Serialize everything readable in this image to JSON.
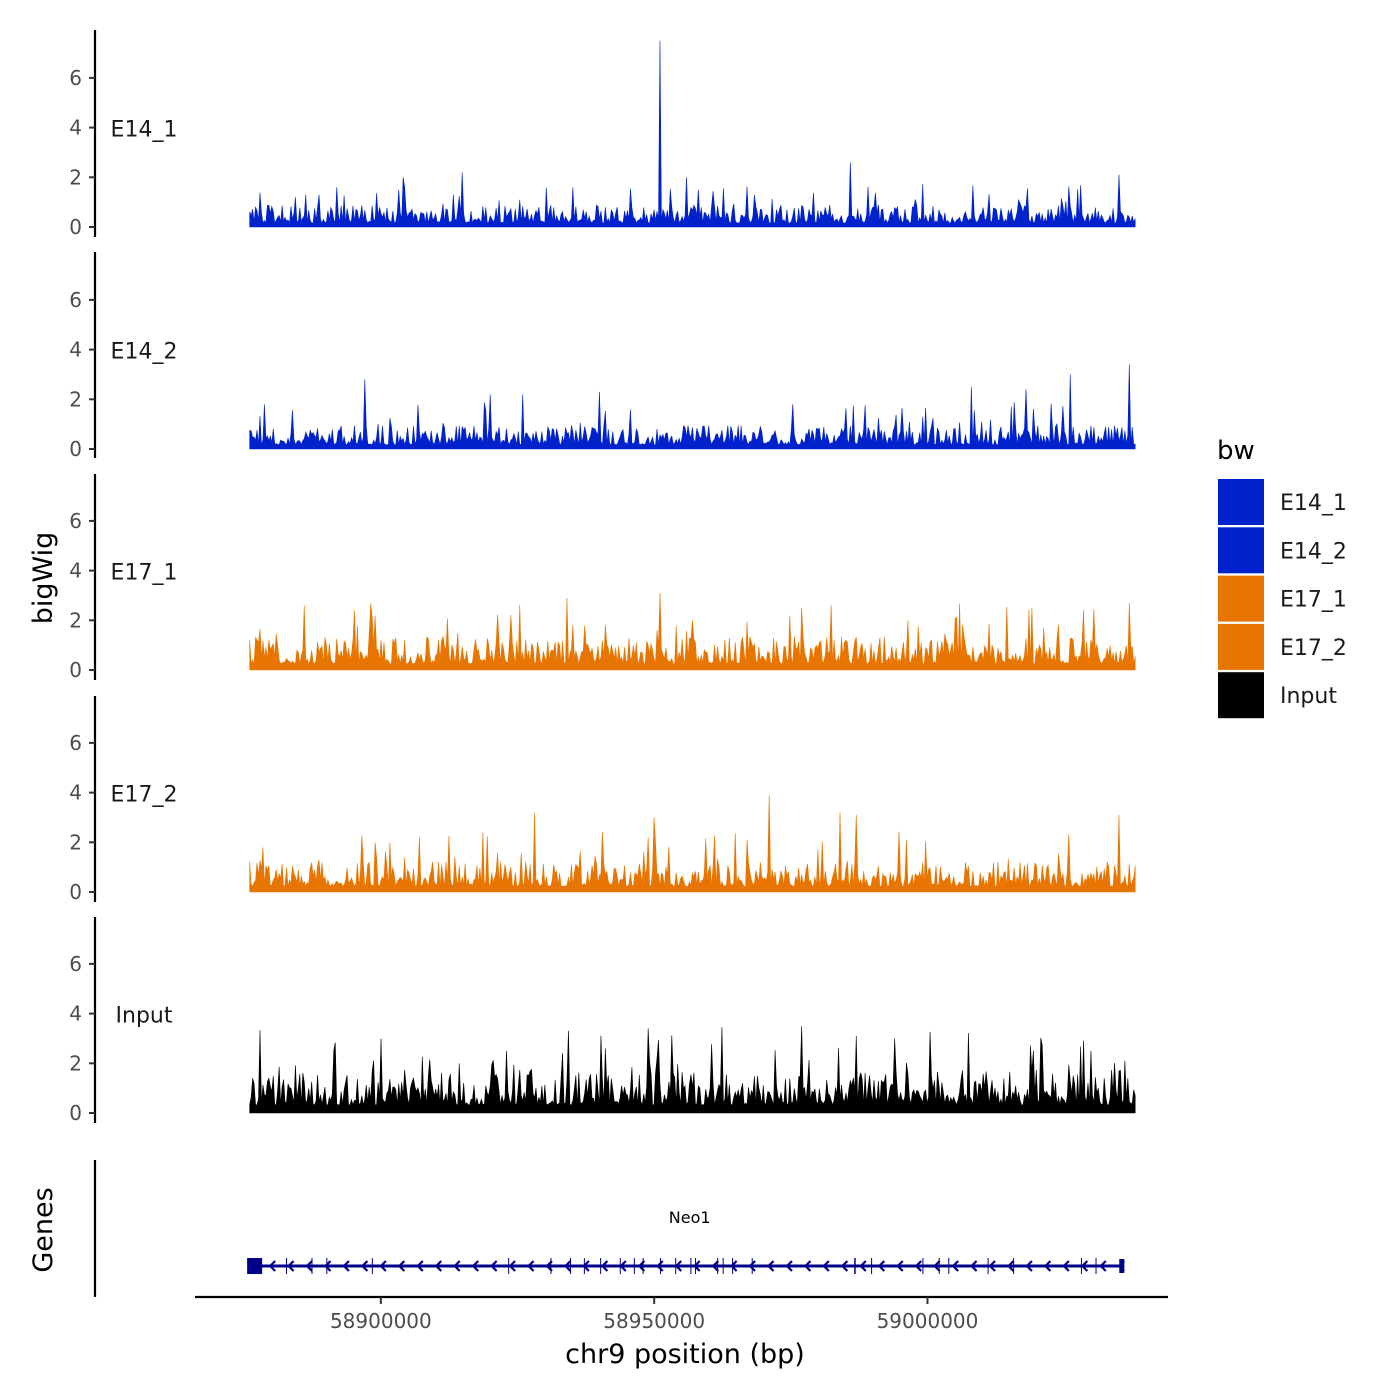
{
  "chart_data": {
    "type": "area",
    "title": "",
    "xlabel": "chr9 position (bp)",
    "ylabel": "bigWig",
    "genes_label": "Genes",
    "xlim": [
      58866000,
      59044000
    ],
    "region": [
      58876000,
      59038000
    ],
    "x_ticks": [
      58900000,
      58950000,
      59000000
    ],
    "x_tick_labels": [
      "58900000",
      "58950000",
      "59000000"
    ],
    "ylim": [
      0,
      7.7
    ],
    "y_ticks": [
      0,
      2,
      4,
      6
    ],
    "y_tick_labels": [
      "0",
      "2",
      "4",
      "6"
    ],
    "legend": {
      "title": "bw",
      "items": [
        {
          "label": "E14_1",
          "color": "#0022cc"
        },
        {
          "label": "E14_2",
          "color": "#0022cc"
        },
        {
          "label": "E17_1",
          "color": "#e87500"
        },
        {
          "label": "E17_2",
          "color": "#e87500"
        },
        {
          "label": "Input",
          "color": "#000000"
        }
      ]
    },
    "series": [
      {
        "name": "E14_1",
        "color": "#0022cc",
        "baseline": 0.65,
        "peaks": [
          {
            "x": 58951000,
            "y": 7.5
          },
          {
            "x": 58935000,
            "y": 1.6
          },
          {
            "x": 58986000,
            "y": 2.6
          },
          {
            "x": 58956000,
            "y": 2.0
          },
          {
            "x": 58892000,
            "y": 1.6
          },
          {
            "x": 58904000,
            "y": 2.0
          },
          {
            "x": 58915000,
            "y": 2.2
          },
          {
            "x": 59035000,
            "y": 2.1
          }
        ]
      },
      {
        "name": "E14_2",
        "color": "#0022cc",
        "baseline": 0.7,
        "peaks": [
          {
            "x": 58897000,
            "y": 2.8
          },
          {
            "x": 58920000,
            "y": 2.2
          },
          {
            "x": 58926000,
            "y": 2.2
          },
          {
            "x": 58940000,
            "y": 2.3
          },
          {
            "x": 59026000,
            "y": 3.0
          },
          {
            "x": 59037000,
            "y": 3.4
          },
          {
            "x": 59008000,
            "y": 2.5
          },
          {
            "x": 59018000,
            "y": 2.4
          }
        ]
      },
      {
        "name": "E17_1",
        "color": "#e87500",
        "baseline": 1.0,
        "peaks": [
          {
            "x": 58886000,
            "y": 2.6
          },
          {
            "x": 58934000,
            "y": 2.9
          },
          {
            "x": 58951000,
            "y": 3.1
          },
          {
            "x": 58957000,
            "y": 2.0
          },
          {
            "x": 58977000,
            "y": 2.5
          },
          {
            "x": 59019000,
            "y": 2.5
          },
          {
            "x": 59037000,
            "y": 2.7
          }
        ]
      },
      {
        "name": "E17_2",
        "color": "#e87500",
        "baseline": 0.9,
        "peaks": [
          {
            "x": 58928000,
            "y": 3.2
          },
          {
            "x": 58950000,
            "y": 3.0
          },
          {
            "x": 58971000,
            "y": 3.9
          },
          {
            "x": 58984000,
            "y": 3.2
          },
          {
            "x": 58987000,
            "y": 3.1
          },
          {
            "x": 59035000,
            "y": 3.1
          },
          {
            "x": 58907000,
            "y": 2.2
          }
        ]
      },
      {
        "name": "Input",
        "color": "#000000",
        "baseline": 1.3,
        "peaks": [
          {
            "x": 58949000,
            "y": 3.4
          },
          {
            "x": 58900000,
            "y": 3.0
          },
          {
            "x": 58987000,
            "y": 3.1
          },
          {
            "x": 58994000,
            "y": 3.0
          },
          {
            "x": 58941000,
            "y": 2.6
          },
          {
            "x": 58923000,
            "y": 2.5
          },
          {
            "x": 59030000,
            "y": 2.5
          }
        ]
      }
    ],
    "genes": [
      {
        "name": "Neo1",
        "start": 58877000,
        "end": 59036000,
        "strand": "-",
        "color": "#00008b"
      }
    ]
  }
}
